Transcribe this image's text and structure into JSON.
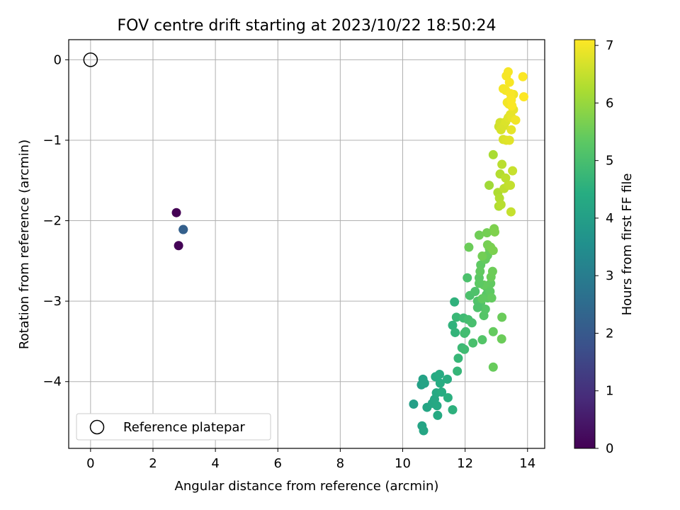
{
  "chart_data": {
    "type": "scatter",
    "title": "FOV centre drift starting at 2023/10/22 18:50:24",
    "xlabel": "Angular distance from reference (arcmin)",
    "ylabel": "Rotation from reference (arcmin)",
    "xlim": [
      -0.7,
      14.55
    ],
    "ylim": [
      -4.83,
      0.25
    ],
    "xticks": [
      0,
      2,
      4,
      6,
      8,
      10,
      12,
      14
    ],
    "yticks": [
      0,
      -1,
      -2,
      -3,
      -4
    ],
    "xtick_labels": [
      "0",
      "2",
      "4",
      "6",
      "8",
      "10",
      "12",
      "14"
    ],
    "ytick_labels": [
      "0",
      "−1",
      "−2",
      "−3",
      "−4"
    ],
    "grid": true,
    "legend": {
      "location": "lower-left",
      "entries": [
        "Reference platepar"
      ]
    },
    "reference_point": {
      "x": 0,
      "y": 0
    },
    "colorbar": {
      "label": "Hours from first FF file",
      "colormap": "viridis",
      "range": [
        0,
        7.1
      ],
      "ticks": [
        0,
        1,
        2,
        3,
        4,
        5,
        6,
        7
      ],
      "tick_labels": [
        "0",
        "1",
        "2",
        "3",
        "4",
        "5",
        "6",
        "7"
      ]
    },
    "points": [
      [
        2.75,
        -1.9,
        0.0
      ],
      [
        2.82,
        -2.31,
        0.05
      ],
      [
        2.97,
        -2.11,
        2.1
      ],
      [
        2.97,
        -2.11,
        2.2
      ],
      [
        10.35,
        -4.28,
        4.0
      ],
      [
        10.6,
        -4.04,
        4.05
      ],
      [
        10.65,
        -3.97,
        4.1
      ],
      [
        10.7,
        -4.02,
        4.12
      ],
      [
        10.62,
        -4.55,
        4.15
      ],
      [
        10.67,
        -4.61,
        4.18
      ],
      [
        10.78,
        -4.32,
        4.2
      ],
      [
        10.95,
        -4.27,
        4.22
      ],
      [
        11.02,
        -4.22,
        4.25
      ],
      [
        11.1,
        -4.3,
        4.28
      ],
      [
        11.08,
        -4.14,
        4.3
      ],
      [
        11.12,
        -4.42,
        4.33
      ],
      [
        11.05,
        -3.94,
        4.35
      ],
      [
        11.18,
        -3.91,
        4.38
      ],
      [
        11.2,
        -4.02,
        4.4
      ],
      [
        11.25,
        -4.13,
        4.42
      ],
      [
        11.43,
        -3.97,
        4.45
      ],
      [
        11.45,
        -4.2,
        4.5
      ],
      [
        11.6,
        -4.35,
        4.55
      ],
      [
        11.6,
        -3.3,
        4.6
      ],
      [
        11.68,
        -3.39,
        4.65
      ],
      [
        11.75,
        -3.87,
        4.7
      ],
      [
        11.78,
        -3.71,
        4.72
      ],
      [
        11.72,
        -3.2,
        4.75
      ],
      [
        11.9,
        -3.58,
        4.8
      ],
      [
        11.95,
        -3.21,
        4.85
      ],
      [
        11.98,
        -3.6,
        4.88
      ],
      [
        11.98,
        -3.4,
        4.9
      ],
      [
        12.02,
        -3.38,
        4.92
      ],
      [
        12.1,
        -3.23,
        4.95
      ],
      [
        12.22,
        -3.27,
        5.0
      ],
      [
        12.25,
        -3.52,
        5.02
      ],
      [
        12.15,
        -2.93,
        5.05
      ],
      [
        12.32,
        -2.88,
        5.1
      ],
      [
        12.4,
        -3.0,
        5.12
      ],
      [
        12.5,
        -3.02,
        5.15
      ],
      [
        12.55,
        -3.48,
        5.18
      ],
      [
        12.6,
        -3.18,
        5.2
      ],
      [
        12.65,
        -3.1,
        5.22
      ],
      [
        12.68,
        -2.92,
        5.25
      ],
      [
        12.7,
        -2.83,
        5.28
      ],
      [
        12.72,
        -2.96,
        5.3
      ],
      [
        12.75,
        -2.95,
        5.32
      ],
      [
        12.8,
        -2.88,
        5.35
      ],
      [
        12.82,
        -2.78,
        5.38
      ],
      [
        12.85,
        -2.96,
        5.4
      ],
      [
        12.9,
        -3.38,
        5.42
      ],
      [
        12.9,
        -3.82,
        5.45
      ],
      [
        13.18,
        -3.2,
        5.48
      ],
      [
        13.17,
        -3.47,
        5.5
      ],
      [
        11.66,
        -3.01,
        4.58
      ],
      [
        12.07,
        -2.71,
        5.05
      ],
      [
        12.45,
        -2.71,
        5.3
      ],
      [
        12.5,
        -2.55,
        5.35
      ],
      [
        12.48,
        -2.63,
        5.38
      ],
      [
        12.6,
        -2.8,
        5.4
      ],
      [
        12.65,
        -2.48,
        5.42
      ],
      [
        12.72,
        -2.43,
        5.45
      ],
      [
        12.78,
        -2.35,
        5.48
      ],
      [
        12.83,
        -2.7,
        5.5
      ],
      [
        12.88,
        -2.63,
        5.52
      ],
      [
        12.4,
        -3.08,
        5.1
      ],
      [
        12.45,
        -2.78,
        5.32
      ],
      [
        12.55,
        -2.97,
        5.36
      ],
      [
        12.12,
        -2.33,
        5.5
      ],
      [
        12.45,
        -2.18,
        5.55
      ],
      [
        12.55,
        -2.44,
        5.58
      ],
      [
        12.7,
        -2.15,
        5.6
      ],
      [
        12.72,
        -2.3,
        5.62
      ],
      [
        12.82,
        -2.33,
        5.65
      ],
      [
        12.9,
        -2.37,
        5.68
      ],
      [
        12.93,
        -2.1,
        5.7
      ],
      [
        12.95,
        -2.14,
        5.72
      ],
      [
        12.77,
        -1.56,
        6.1
      ],
      [
        12.9,
        -1.18,
        6.2
      ],
      [
        13.05,
        -1.65,
        6.25
      ],
      [
        13.08,
        -1.82,
        6.28
      ],
      [
        13.1,
        -1.72,
        6.3
      ],
      [
        13.12,
        -1.42,
        6.32
      ],
      [
        13.15,
        -1.8,
        6.35
      ],
      [
        13.18,
        -1.3,
        6.38
      ],
      [
        13.25,
        -1.6,
        6.4
      ],
      [
        13.3,
        -1.47,
        6.42
      ],
      [
        13.38,
        -1.56,
        6.45
      ],
      [
        13.45,
        -1.56,
        6.48
      ],
      [
        13.47,
        -1.89,
        6.5
      ],
      [
        13.52,
        -1.38,
        6.52
      ],
      [
        13.08,
        -0.83,
        6.6
      ],
      [
        13.12,
        -0.78,
        6.65
      ],
      [
        13.15,
        -0.87,
        6.68
      ],
      [
        13.22,
        -0.99,
        6.7
      ],
      [
        13.25,
        -0.82,
        6.72
      ],
      [
        13.3,
        -0.77,
        6.74
      ],
      [
        13.32,
        -1.0,
        6.76
      ],
      [
        13.38,
        -0.72,
        6.78
      ],
      [
        13.42,
        -1.0,
        6.8
      ],
      [
        13.45,
        -0.68,
        6.82
      ],
      [
        13.48,
        -0.87,
        6.84
      ],
      [
        13.5,
        -0.72,
        6.86
      ],
      [
        13.55,
        -0.62,
        6.88
      ],
      [
        13.4,
        -0.55,
        6.9
      ],
      [
        13.45,
        -0.5,
        6.92
      ],
      [
        13.5,
        -0.58,
        6.94
      ],
      [
        13.55,
        -0.43,
        6.96
      ],
      [
        13.62,
        -0.75,
        6.97
      ],
      [
        13.35,
        -0.53,
        6.98
      ],
      [
        13.22,
        -0.36,
        6.99
      ],
      [
        13.3,
        -0.38,
        7.0
      ],
      [
        13.32,
        -0.2,
        7.02
      ],
      [
        13.38,
        -0.15,
        7.03
      ],
      [
        13.42,
        -0.28,
        7.04
      ],
      [
        13.45,
        -0.42,
        7.05
      ],
      [
        13.48,
        -0.5,
        7.06
      ],
      [
        13.5,
        -0.57,
        7.07
      ],
      [
        13.85,
        -0.21,
        7.08
      ],
      [
        13.88,
        -0.46,
        7.1
      ]
    ]
  }
}
